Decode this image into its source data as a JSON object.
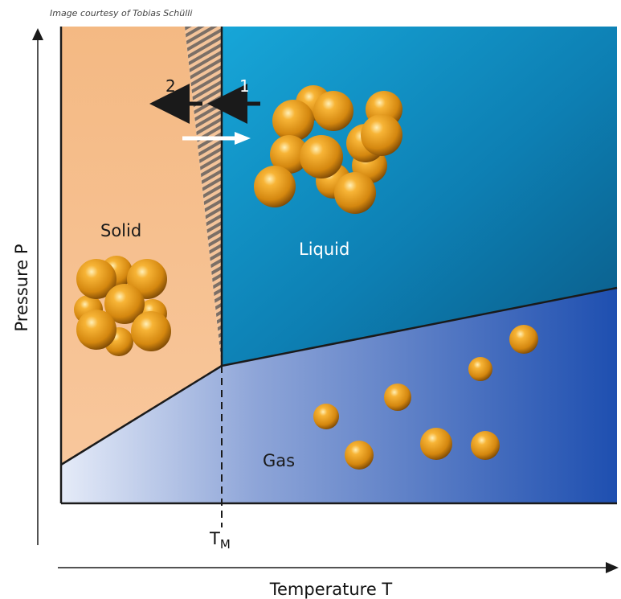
{
  "credit": "Image courtesy of Tobias Schülli",
  "phases": {
    "solid": "Solid",
    "liquid": "Liquid",
    "gas": "Gas"
  },
  "axes": {
    "x_title": "Temperature T",
    "y_title": "Pressure P",
    "melting_label_main": "T",
    "melting_label_sub": "M"
  },
  "arrows": {
    "arrow_1_label": "1",
    "arrow_2_label": "2"
  },
  "colors": {
    "solid_region": "#f6c08e",
    "liquid_region": "#1189bd",
    "gas_region": "#4f6fc1",
    "particle": "#e79a1d",
    "boundary": "#1a1a1a",
    "accent_white": "#ffffff"
  }
}
